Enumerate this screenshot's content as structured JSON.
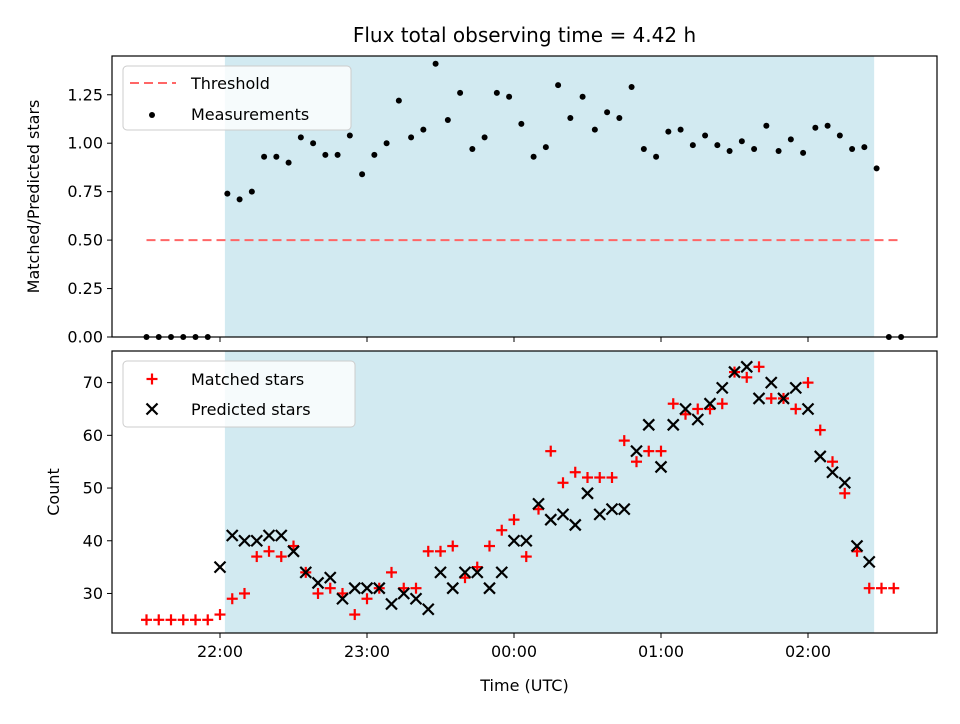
{
  "chart_data": [
    {
      "type": "scatter",
      "title": "Flux total observing time = 4.42 h",
      "xlabel": "",
      "ylabel": "Matched/Predicted stars",
      "ylim": [
        0,
        1.45
      ],
      "yticks": [
        "0.00",
        "0.25",
        "0.50",
        "0.75",
        "1.00",
        "1.25"
      ],
      "ytick_values": [
        0,
        0.25,
        0.5,
        0.75,
        1.0,
        1.25
      ],
      "grid": false,
      "legend": "top-left",
      "shaded_span": {
        "start": "22:02",
        "end": "02:27",
        "color": "#add8e6"
      },
      "threshold": {
        "name": "Threshold",
        "value": 0.5,
        "x_start": "21:30",
        "x_end": "02:37",
        "color": "#ff6666",
        "style": "dashed"
      },
      "series": [
        {
          "name": "Measurements",
          "color": "#000000",
          "marker": "dot",
          "x": [
            "21:30",
            "21:35",
            "21:40",
            "21:45",
            "21:50",
            "21:55",
            "22:03",
            "22:08",
            "22:13",
            "22:18",
            "22:23",
            "22:28",
            "22:33",
            "22:38",
            "22:43",
            "22:48",
            "22:53",
            "22:58",
            "23:03",
            "23:08",
            "23:13",
            "23:18",
            "23:23",
            "23:28",
            "23:33",
            "23:38",
            "23:43",
            "23:48",
            "23:53",
            "23:58",
            "00:03",
            "00:08",
            "00:13",
            "00:18",
            "00:23",
            "00:28",
            "00:33",
            "00:38",
            "00:43",
            "00:48",
            "00:53",
            "00:58",
            "01:03",
            "01:08",
            "01:13",
            "01:18",
            "01:23",
            "01:28",
            "01:33",
            "01:38",
            "01:43",
            "01:48",
            "01:53",
            "01:58",
            "02:03",
            "02:08",
            "02:13",
            "02:18",
            "02:23",
            "02:28",
            "02:33",
            "02:38"
          ],
          "y": [
            0,
            0,
            0,
            0,
            0,
            0,
            0.74,
            0.71,
            0.75,
            0.93,
            0.93,
            0.9,
            1.03,
            1.0,
            0.94,
            0.94,
            1.04,
            0.84,
            0.94,
            1.0,
            1.22,
            1.03,
            1.07,
            1.41,
            1.12,
            1.26,
            0.97,
            1.03,
            1.26,
            1.24,
            1.1,
            0.93,
            0.98,
            1.3,
            1.13,
            1.24,
            1.07,
            1.16,
            1.13,
            1.29,
            0.97,
            0.93,
            1.06,
            1.07,
            0.99,
            1.04,
            0.99,
            0.96,
            1.01,
            0.97,
            1.09,
            0.96,
            1.02,
            0.95,
            1.08,
            1.09,
            1.04,
            0.97,
            0.98,
            0.87,
            0,
            0
          ]
        }
      ]
    },
    {
      "type": "scatter",
      "title": "",
      "xlabel": "Time (UTC)",
      "ylabel": "Count",
      "ylim": [
        22.5,
        76
      ],
      "yticks": [
        "30",
        "40",
        "50",
        "60",
        "70"
      ],
      "ytick_values": [
        30,
        40,
        50,
        60,
        70
      ],
      "xticks": [
        "22:00",
        "23:00",
        "00:00",
        "01:00",
        "02:00"
      ],
      "grid": false,
      "legend": "top-left",
      "shaded_span": {
        "start": "22:02",
        "end": "02:27",
        "color": "#add8e6"
      },
      "series": [
        {
          "name": "Matched stars",
          "color": "#ff0000",
          "marker": "plus",
          "x": [
            "21:30",
            "21:35",
            "21:40",
            "21:45",
            "21:50",
            "21:55",
            "22:00",
            "22:05",
            "22:10",
            "22:15",
            "22:20",
            "22:25",
            "22:30",
            "22:35",
            "22:40",
            "22:45",
            "22:50",
            "22:55",
            "23:00",
            "23:05",
            "23:10",
            "23:15",
            "23:20",
            "23:25",
            "23:30",
            "23:35",
            "23:40",
            "23:45",
            "23:50",
            "23:55",
            "00:00",
            "00:05",
            "00:10",
            "00:15",
            "00:20",
            "00:25",
            "00:30",
            "00:35",
            "00:40",
            "00:45",
            "00:50",
            "00:55",
            "01:00",
            "01:05",
            "01:10",
            "01:15",
            "01:20",
            "01:25",
            "01:30",
            "01:35",
            "01:40",
            "01:45",
            "01:50",
            "01:55",
            "02:00",
            "02:05",
            "02:10",
            "02:15",
            "02:20",
            "02:25",
            "02:30",
            "02:35"
          ],
          "y": [
            25,
            25,
            25,
            25,
            25,
            25,
            26,
            29,
            30,
            37,
            38,
            37,
            39,
            34,
            30,
            31,
            30,
            26,
            29,
            31,
            34,
            31,
            31,
            38,
            38,
            39,
            33,
            35,
            39,
            42,
            44,
            37,
            46,
            57,
            51,
            53,
            52,
            52,
            52,
            59,
            55,
            57,
            57,
            66,
            64,
            65,
            65,
            66,
            72,
            71,
            73,
            67,
            67,
            65,
            70,
            61,
            55,
            49,
            38,
            31,
            31,
            31
          ]
        },
        {
          "name": "Predicted stars",
          "color": "#000000",
          "marker": "x",
          "x": [
            "22:00",
            "22:05",
            "22:10",
            "22:15",
            "22:20",
            "22:25",
            "22:30",
            "22:35",
            "22:40",
            "22:45",
            "22:50",
            "22:55",
            "23:00",
            "23:05",
            "23:10",
            "23:15",
            "23:20",
            "23:25",
            "23:30",
            "23:35",
            "23:40",
            "23:45",
            "23:50",
            "23:55",
            "00:00",
            "00:05",
            "00:10",
            "00:15",
            "00:20",
            "00:25",
            "00:30",
            "00:35",
            "00:40",
            "00:45",
            "00:50",
            "00:55",
            "01:00",
            "01:05",
            "01:10",
            "01:15",
            "01:20",
            "01:25",
            "01:30",
            "01:35",
            "01:40",
            "01:45",
            "01:50",
            "01:55",
            "02:00",
            "02:05",
            "02:10",
            "02:15",
            "02:20",
            "02:25"
          ],
          "y": [
            35,
            41,
            40,
            40,
            41,
            41,
            38,
            34,
            32,
            33,
            29,
            31,
            31,
            31,
            28,
            30,
            29,
            27,
            34,
            31,
            34,
            34,
            31,
            34,
            40,
            40,
            47,
            44,
            45,
            43,
            49,
            45,
            46,
            46,
            57,
            62,
            54,
            62,
            65,
            63,
            66,
            69,
            72,
            73,
            67,
            70,
            67,
            69,
            65,
            56,
            53,
            51,
            39,
            36
          ]
        }
      ]
    }
  ]
}
